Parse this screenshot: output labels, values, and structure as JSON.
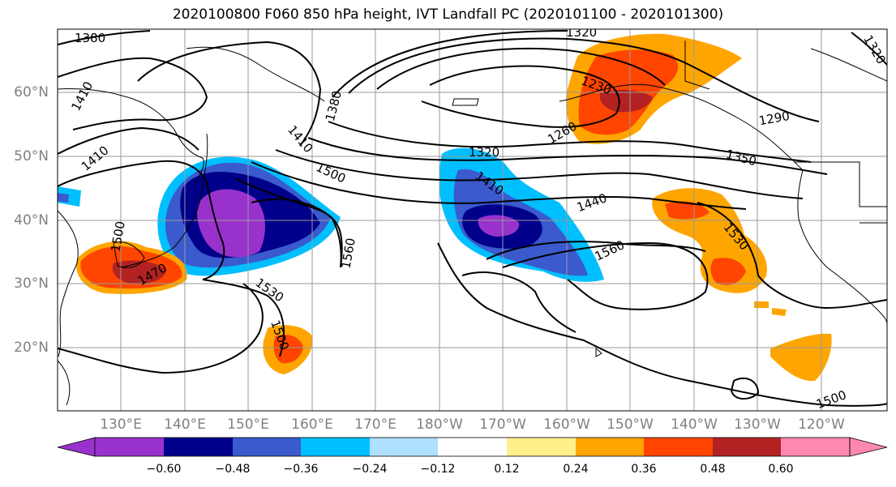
{
  "title": "2020100800 F060 850 hPa height, IVT Landfall PC (2020101100 - 2020101300)",
  "latitude_labels": [
    "60°N",
    "50°N",
    "40°N",
    "30°N",
    "20°N"
  ],
  "longitude_labels": [
    "130°E",
    "140°E",
    "150°E",
    "160°E",
    "170°E",
    "180°W",
    "170°W",
    "160°W",
    "150°W",
    "140°W",
    "130°W",
    "120°W"
  ],
  "contour_labels": [
    "1380",
    "1410",
    "1410",
    "1380",
    "1410",
    "1320",
    "1230",
    "1260",
    "1290",
    "1320",
    "1350",
    "1410",
    "1440",
    "1500",
    "1560",
    "1560",
    "1530",
    "1530",
    "1500",
    "1470",
    "1500",
    "1500",
    "1320"
  ],
  "colorbar": {
    "colors": [
      "#9932CC",
      "#00008B",
      "#3A5ACD",
      "#00BFFF",
      "#B0E0FF",
      "#FFFFFF",
      "#FFF08C",
      "#FFA500",
      "#FF4500",
      "#B22222",
      "#FF88B0"
    ],
    "tick_labels": [
      "−0.60",
      "−0.48",
      "−0.36",
      "−0.24",
      "−0.12",
      "0.12",
      "0.24",
      "0.36",
      "0.48",
      "0.60"
    ]
  }
}
